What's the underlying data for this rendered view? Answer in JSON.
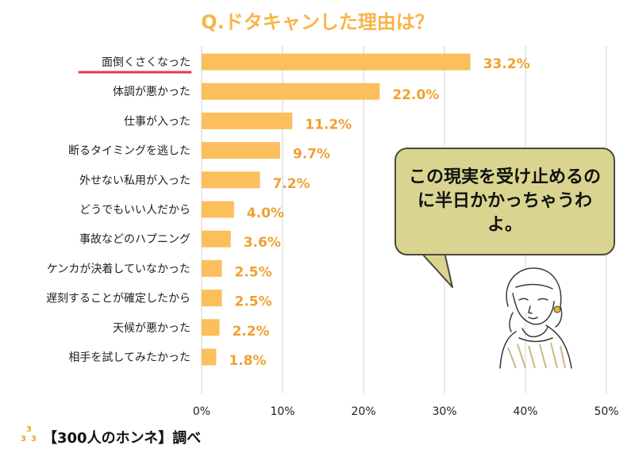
{
  "title": "Q.ドタキャンした理由は？",
  "chart_data": {
    "type": "bar",
    "orientation": "horizontal",
    "categories": [
      "面倒くさくなった",
      "体調が悪かった",
      "仕事が入った",
      "断るタイミングを逃した",
      "外せない私用が入った",
      "どうでもいい人だから",
      "事故などのハプニング",
      "ケンカが決着していなかった",
      "遅刻することが確定したから",
      "天候が悪かった",
      "相手を試してみたかった"
    ],
    "values": [
      33.2,
      22.0,
      11.2,
      9.7,
      7.2,
      4.0,
      3.6,
      2.5,
      2.5,
      2.2,
      1.8
    ],
    "value_labels": [
      "33.2%",
      "22.0%",
      "11.2%",
      "9.7%",
      "7.2%",
      "4.0%",
      "3.6%",
      "2.5%",
      "2.5%",
      "2.2%",
      "1.8%"
    ],
    "xlim": [
      0,
      50
    ],
    "xticks": [
      "0%",
      "10%",
      "20%",
      "30%",
      "40%",
      "50%"
    ],
    "grid": true,
    "bar_color": "#fbbf5c",
    "label_color": "#f0a030",
    "highlight_index": 0,
    "highlight_color": "#e8354a"
  },
  "bubble": {
    "text": "この現実を受け止めるのに半日かかっちゃうわよ。"
  },
  "source": {
    "logo_digits": [
      "3",
      "3",
      "3"
    ],
    "text": "【300人のホンネ】調べ"
  }
}
